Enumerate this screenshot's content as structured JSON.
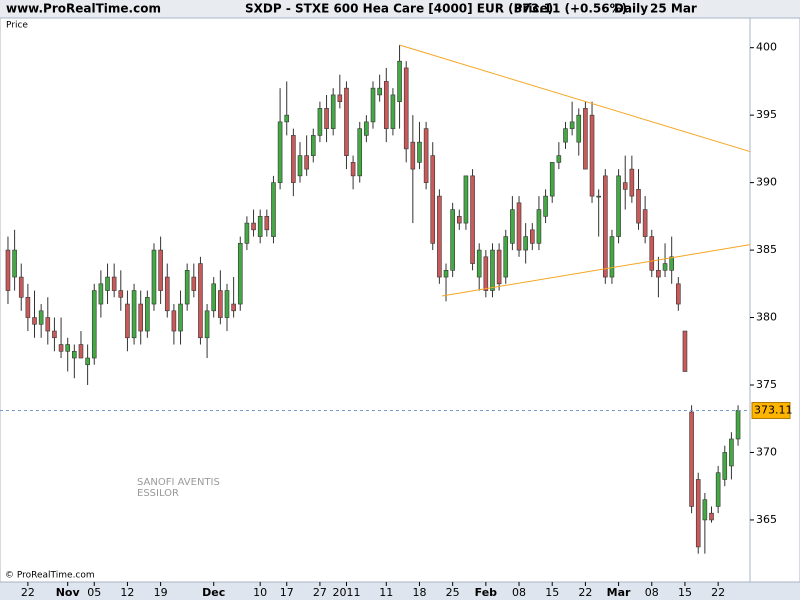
{
  "header": {
    "site": "www.ProRealTime.com",
    "instrument": "SXDP - STXE 600 Hea Care [4000] EUR (Price)",
    "quote": "373.11 (+0.56%)",
    "period": "Daily",
    "date": "25 Mar"
  },
  "chart_data": {
    "type": "candlestick",
    "panel_label": "Price",
    "up_color": "#44a844",
    "down_color": "#c85a5a",
    "ylim": [
      360.4,
      402.2
    ],
    "yticks": [
      365,
      370,
      375,
      380,
      385,
      390,
      395,
      400
    ],
    "xlim": [
      -1.2,
      111.8
    ],
    "xticks": [
      {
        "value": 3,
        "label": "22"
      },
      {
        "value": 9,
        "label": "Nov"
      },
      {
        "value": 13,
        "label": "05"
      },
      {
        "value": 18,
        "label": "12"
      },
      {
        "value": 23,
        "label": "19"
      },
      {
        "value": 31,
        "label": "Dec"
      },
      {
        "value": 38,
        "label": "10"
      },
      {
        "value": 42,
        "label": "17"
      },
      {
        "value": 47,
        "label": "27"
      },
      {
        "value": 51,
        "label": "2011"
      },
      {
        "value": 57,
        "label": "11"
      },
      {
        "value": 62,
        "label": "18"
      },
      {
        "value": 67,
        "label": "25"
      },
      {
        "value": 72,
        "label": "Feb"
      },
      {
        "value": 77,
        "label": "08"
      },
      {
        "value": 82,
        "label": "15"
      },
      {
        "value": 87,
        "label": "22"
      },
      {
        "value": 92,
        "label": "Mar"
      },
      {
        "value": 97,
        "label": "08"
      },
      {
        "value": 102,
        "label": "15"
      },
      {
        "value": 107,
        "label": "22"
      }
    ],
    "ohlc": [
      [
        385,
        386,
        381,
        382
      ],
      [
        383,
        386.5,
        382,
        385
      ],
      [
        383,
        384,
        380.5,
        381.5
      ],
      [
        381.5,
        382.5,
        379,
        380
      ],
      [
        380,
        382,
        378.5,
        379.5
      ],
      [
        379.5,
        381,
        378.5,
        380.5
      ],
      [
        380,
        381.5,
        378,
        379
      ],
      [
        379,
        380,
        377.5,
        378.5
      ],
      [
        378,
        380,
        377,
        377.5
      ],
      [
        377.5,
        378.5,
        376,
        378
      ],
      [
        377,
        378,
        375.5,
        377.5
      ],
      [
        378,
        379,
        377,
        377
      ],
      [
        376.5,
        378,
        375,
        377
      ],
      [
        377,
        382.5,
        376.5,
        382
      ],
      [
        381,
        383.5,
        380,
        382.5
      ],
      [
        382,
        384,
        381,
        383
      ],
      [
        383,
        384,
        381.5,
        382
      ],
      [
        382,
        383.5,
        380.5,
        381.5
      ],
      [
        381,
        382,
        377.5,
        378.5
      ],
      [
        378.5,
        382.5,
        378,
        382
      ],
      [
        381,
        382,
        378,
        379
      ],
      [
        379,
        382,
        378.5,
        381.5
      ],
      [
        381,
        385.5,
        380.5,
        385
      ],
      [
        385,
        386,
        381,
        382
      ],
      [
        383,
        384,
        380,
        380.5
      ],
      [
        380.5,
        381,
        378,
        379
      ],
      [
        379,
        382,
        378,
        381
      ],
      [
        381,
        384,
        380.5,
        383.5
      ],
      [
        383,
        384,
        381.5,
        382
      ],
      [
        384,
        384.5,
        378,
        378.5
      ],
      [
        378.5,
        381,
        377,
        380.5
      ],
      [
        380.5,
        383,
        380,
        382.5
      ],
      [
        382,
        383.5,
        379.5,
        380
      ],
      [
        380,
        382.5,
        379,
        382
      ],
      [
        381,
        383,
        380,
        380.5
      ],
      [
        381,
        386,
        380.5,
        385.5
      ],
      [
        385.5,
        387.5,
        385,
        387
      ],
      [
        387,
        388,
        386,
        386.5
      ],
      [
        386,
        388,
        385.5,
        387.5
      ],
      [
        387.5,
        388,
        386,
        386.5
      ],
      [
        386,
        390.5,
        385.5,
        390
      ],
      [
        390,
        397,
        389.5,
        394.5
      ],
      [
        394.5,
        397.5,
        393.5,
        395
      ],
      [
        393.5,
        394,
        389,
        390
      ],
      [
        390.5,
        393,
        390,
        392
      ],
      [
        392,
        393.5,
        390.5,
        391
      ],
      [
        392,
        394,
        391.5,
        393.5
      ],
      [
        393.5,
        396,
        393,
        395.5
      ],
      [
        395.5,
        396.5,
        393,
        394
      ],
      [
        394,
        397,
        393.5,
        396.5
      ],
      [
        396.5,
        398,
        395.5,
        396
      ],
      [
        397,
        397.5,
        391,
        392
      ],
      [
        391.5,
        392,
        389.5,
        390.5
      ],
      [
        390.5,
        394.5,
        390,
        394
      ],
      [
        393.5,
        395,
        393,
        394.5
      ],
      [
        394.5,
        397.5,
        394,
        397
      ],
      [
        396.5,
        398,
        396,
        397
      ],
      [
        397.5,
        398.5,
        393,
        394
      ],
      [
        394,
        397,
        393.5,
        396.5
      ],
      [
        396,
        400.2,
        394,
        399
      ],
      [
        398.5,
        399,
        391.5,
        392.5
      ],
      [
        393,
        395,
        387,
        391
      ],
      [
        391.5,
        394.5,
        391,
        393
      ],
      [
        394,
        394.5,
        389.5,
        390
      ],
      [
        392,
        393,
        385,
        385.5
      ],
      [
        389,
        389.5,
        382.5,
        383
      ],
      [
        383,
        384,
        381.2,
        383.5
      ],
      [
        383.5,
        388.5,
        383,
        388
      ],
      [
        387.5,
        388,
        386.5,
        387
      ],
      [
        387,
        390.5,
        386.5,
        390.5
      ],
      [
        390.5,
        391,
        383.5,
        384
      ],
      [
        383,
        385.5,
        382,
        385
      ],
      [
        384.5,
        385,
        381.5,
        382
      ],
      [
        382,
        385.5,
        381.5,
        385
      ],
      [
        385,
        385.5,
        382,
        382.5
      ],
      [
        383,
        386.5,
        382.5,
        386
      ],
      [
        385.5,
        389,
        385,
        388
      ],
      [
        388.5,
        389,
        384.5,
        385
      ],
      [
        385,
        387,
        384,
        386
      ],
      [
        386.5,
        387,
        385,
        385.5
      ],
      [
        385.5,
        389,
        385,
        388
      ],
      [
        387.5,
        389.5,
        387,
        389
      ],
      [
        389,
        391.5,
        388.5,
        391.5
      ],
      [
        391.5,
        393,
        391,
        392
      ],
      [
        393,
        394.5,
        392.5,
        394
      ],
      [
        394,
        396,
        393.5,
        394.5
      ],
      [
        393,
        395.5,
        392,
        395
      ],
      [
        395.5,
        396,
        391,
        391
      ],
      [
        395,
        396,
        388.5,
        389
      ],
      [
        389,
        389.5,
        386,
        389
      ],
      [
        390.5,
        391,
        382.5,
        383
      ],
      [
        383,
        386.5,
        382.5,
        386
      ],
      [
        386,
        391,
        385.5,
        390.5
      ],
      [
        390,
        392,
        388,
        389.5
      ],
      [
        391,
        392,
        388.5,
        389
      ],
      [
        389.5,
        391,
        386.5,
        387
      ],
      [
        388,
        389,
        385.5,
        386
      ],
      [
        386,
        386.5,
        383,
        383.5
      ],
      [
        383.5,
        384.5,
        381.5,
        383
      ],
      [
        383.5,
        385.5,
        383,
        384
      ],
      [
        383.5,
        386,
        382.5,
        384.5
      ],
      [
        382.5,
        383,
        380.5,
        381
      ],
      [
        379,
        379,
        376,
        376
      ],
      [
        373,
        373.5,
        365.5,
        366
      ],
      [
        368,
        368.5,
        362.5,
        363
      ],
      [
        365,
        367,
        362.5,
        366.5
      ],
      [
        365.5,
        366,
        364.8,
        365
      ],
      [
        366,
        369,
        365.5,
        368.5
      ],
      [
        368,
        370.5,
        367.5,
        370
      ],
      [
        369,
        371.5,
        368,
        371
      ],
      [
        371,
        373.5,
        370.5,
        373.11
      ]
    ],
    "last_price": 373.11,
    "last_price_color": "#ffb400",
    "trendline_color": "#f5a623",
    "trendlines": [
      {
        "x": [
          59,
          111.8
        ],
        "y": [
          400.2,
          392.3
        ]
      },
      {
        "x": [
          65.4,
          111.8
        ],
        "y": [
          381.6,
          385.4
        ]
      }
    ],
    "annotations": [
      "SANOFI AVENTIS",
      "ESSILOR"
    ],
    "copyright": "© ProRealTime.com"
  }
}
